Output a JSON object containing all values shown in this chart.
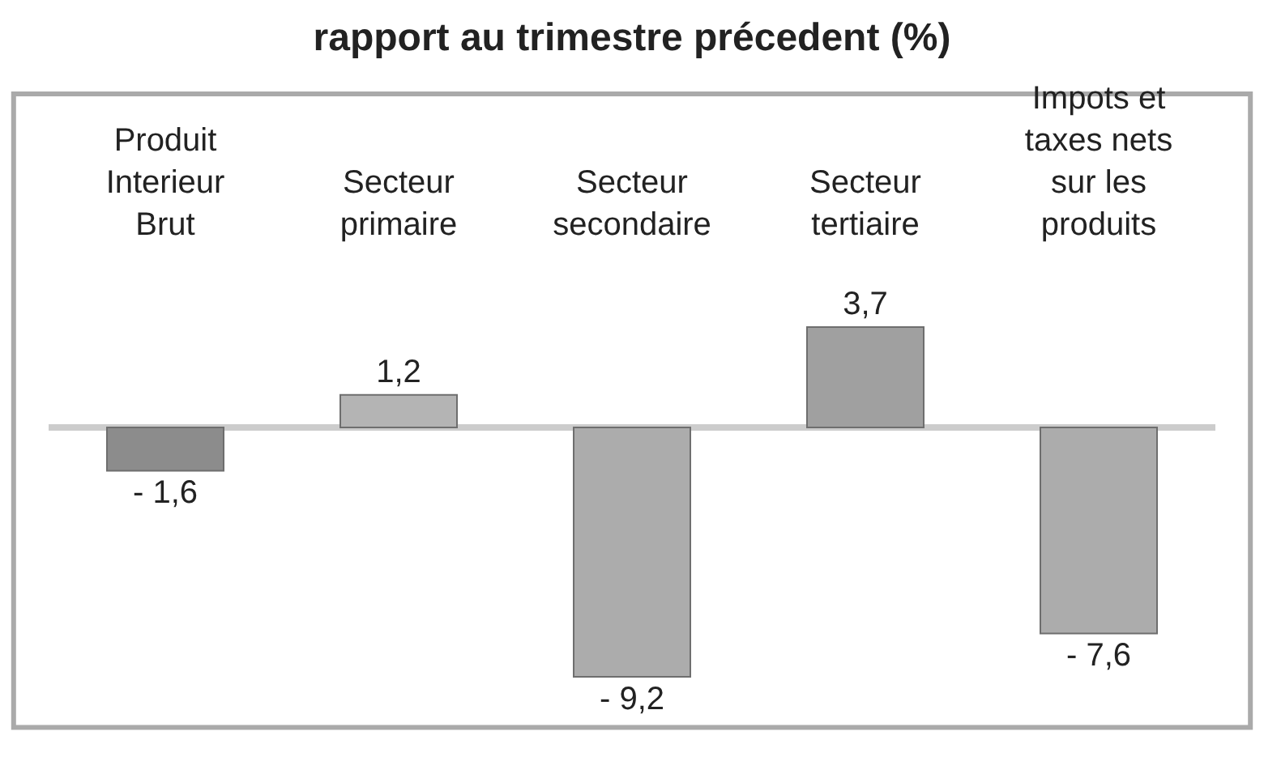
{
  "chart_data": {
    "type": "bar",
    "title": "rapport au trimestre précedent (%)",
    "categories": [
      "Produit Interieur Brut",
      "Secteur primaire",
      "Secteur secondaire",
      "Secteur tertiaire",
      "Impots et taxes nets sur les produits"
    ],
    "values": [
      -1.6,
      1.2,
      -9.2,
      3.7,
      -7.6
    ],
    "colors": [
      "#8c8c8c",
      "#b4b4b4",
      "#acacac",
      "#a0a0a0",
      "#acacac"
    ],
    "value_labels": [
      "- 1,6",
      "1,2",
      "- 9,2",
      "3,7",
      "- 7,6"
    ],
    "data_labels": false
  }
}
